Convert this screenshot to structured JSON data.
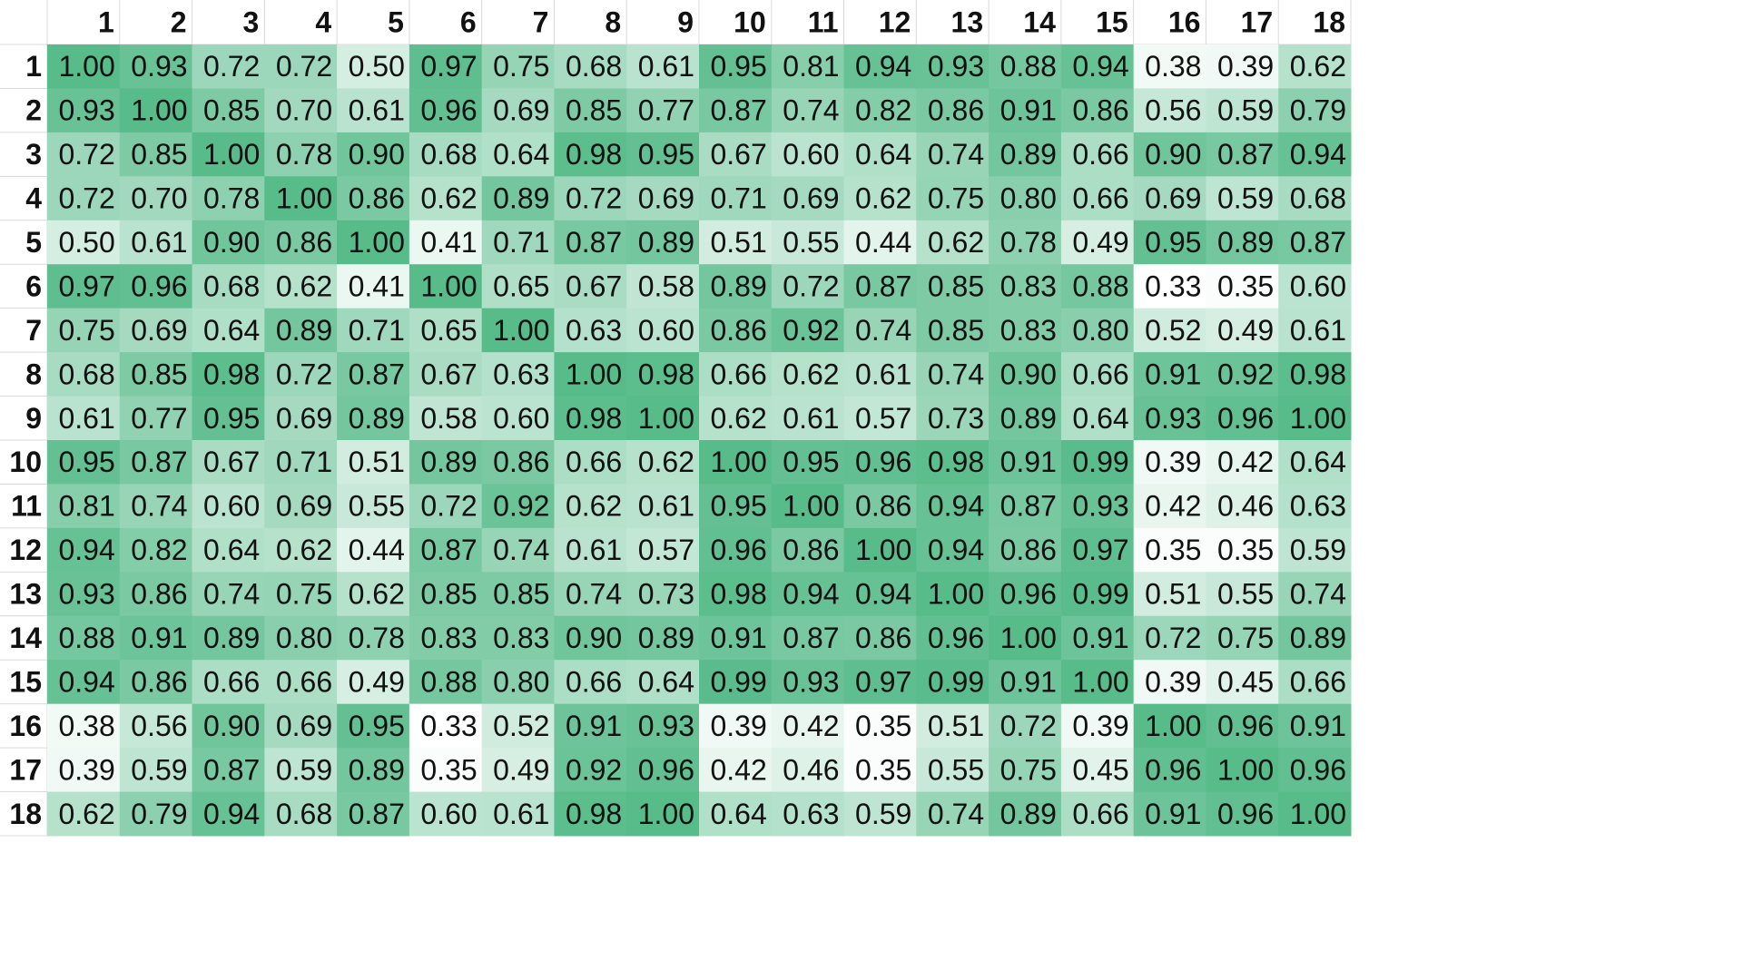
{
  "chart_data": {
    "type": "heatmap",
    "x_labels": [
      "1",
      "2",
      "3",
      "4",
      "5",
      "6",
      "7",
      "8",
      "9",
      "10",
      "11",
      "12",
      "13",
      "14",
      "15",
      "16",
      "17",
      "18"
    ],
    "y_labels": [
      "1",
      "2",
      "3",
      "4",
      "5",
      "6",
      "7",
      "8",
      "9",
      "10",
      "11",
      "12",
      "13",
      "14",
      "15",
      "16",
      "17",
      "18"
    ],
    "values": [
      [
        1.0,
        0.93,
        0.72,
        0.72,
        0.5,
        0.97,
        0.75,
        0.68,
        0.61,
        0.95,
        0.81,
        0.94,
        0.93,
        0.88,
        0.94,
        0.38,
        0.39,
        0.62
      ],
      [
        0.93,
        1.0,
        0.85,
        0.7,
        0.61,
        0.96,
        0.69,
        0.85,
        0.77,
        0.87,
        0.74,
        0.82,
        0.86,
        0.91,
        0.86,
        0.56,
        0.59,
        0.79
      ],
      [
        0.72,
        0.85,
        1.0,
        0.78,
        0.9,
        0.68,
        0.64,
        0.98,
        0.95,
        0.67,
        0.6,
        0.64,
        0.74,
        0.89,
        0.66,
        0.9,
        0.87,
        0.94
      ],
      [
        0.72,
        0.7,
        0.78,
        1.0,
        0.86,
        0.62,
        0.89,
        0.72,
        0.69,
        0.71,
        0.69,
        0.62,
        0.75,
        0.8,
        0.66,
        0.69,
        0.59,
        0.68
      ],
      [
        0.5,
        0.61,
        0.9,
        0.86,
        1.0,
        0.41,
        0.71,
        0.87,
        0.89,
        0.51,
        0.55,
        0.44,
        0.62,
        0.78,
        0.49,
        0.95,
        0.89,
        0.87
      ],
      [
        0.97,
        0.96,
        0.68,
        0.62,
        0.41,
        1.0,
        0.65,
        0.67,
        0.58,
        0.89,
        0.72,
        0.87,
        0.85,
        0.83,
        0.88,
        0.33,
        0.35,
        0.6
      ],
      [
        0.75,
        0.69,
        0.64,
        0.89,
        0.71,
        0.65,
        1.0,
        0.63,
        0.6,
        0.86,
        0.92,
        0.74,
        0.85,
        0.83,
        0.8,
        0.52,
        0.49,
        0.61
      ],
      [
        0.68,
        0.85,
        0.98,
        0.72,
        0.87,
        0.67,
        0.63,
        1.0,
        0.98,
        0.66,
        0.62,
        0.61,
        0.74,
        0.9,
        0.66,
        0.91,
        0.92,
        0.98
      ],
      [
        0.61,
        0.77,
        0.95,
        0.69,
        0.89,
        0.58,
        0.6,
        0.98,
        1.0,
        0.62,
        0.61,
        0.57,
        0.73,
        0.89,
        0.64,
        0.93,
        0.96,
        1.0
      ],
      [
        0.95,
        0.87,
        0.67,
        0.71,
        0.51,
        0.89,
        0.86,
        0.66,
        0.62,
        1.0,
        0.95,
        0.96,
        0.98,
        0.91,
        0.99,
        0.39,
        0.42,
        0.64
      ],
      [
        0.81,
        0.74,
        0.6,
        0.69,
        0.55,
        0.72,
        0.92,
        0.62,
        0.61,
        0.95,
        1.0,
        0.86,
        0.94,
        0.87,
        0.93,
        0.42,
        0.46,
        0.63
      ],
      [
        0.94,
        0.82,
        0.64,
        0.62,
        0.44,
        0.87,
        0.74,
        0.61,
        0.57,
        0.96,
        0.86,
        1.0,
        0.94,
        0.86,
        0.97,
        0.35,
        0.35,
        0.59
      ],
      [
        0.93,
        0.86,
        0.74,
        0.75,
        0.62,
        0.85,
        0.85,
        0.74,
        0.73,
        0.98,
        0.94,
        0.94,
        1.0,
        0.96,
        0.99,
        0.51,
        0.55,
        0.74
      ],
      [
        0.88,
        0.91,
        0.89,
        0.8,
        0.78,
        0.83,
        0.83,
        0.9,
        0.89,
        0.91,
        0.87,
        0.86,
        0.96,
        1.0,
        0.91,
        0.72,
        0.75,
        0.89
      ],
      [
        0.94,
        0.86,
        0.66,
        0.66,
        0.49,
        0.88,
        0.8,
        0.66,
        0.64,
        0.99,
        0.93,
        0.97,
        0.99,
        0.91,
        1.0,
        0.39,
        0.45,
        0.66
      ],
      [
        0.38,
        0.56,
        0.9,
        0.69,
        0.95,
        0.33,
        0.52,
        0.91,
        0.93,
        0.39,
        0.42,
        0.35,
        0.51,
        0.72,
        0.39,
        1.0,
        0.96,
        0.91
      ],
      [
        0.39,
        0.59,
        0.87,
        0.59,
        0.89,
        0.35,
        0.49,
        0.92,
        0.96,
        0.42,
        0.46,
        0.35,
        0.55,
        0.75,
        0.45,
        0.96,
        1.0,
        0.96
      ],
      [
        0.62,
        0.79,
        0.94,
        0.68,
        0.87,
        0.6,
        0.61,
        0.98,
        1.0,
        0.64,
        0.63,
        0.59,
        0.74,
        0.89,
        0.66,
        0.91,
        0.96,
        1.0
      ]
    ],
    "value_range": [
      0.33,
      1.0
    ],
    "colors": {
      "low": "#ffffff",
      "high": "#57bb8a",
      "gridline": "#d9d9d9",
      "text": "#111111"
    },
    "legend": "none",
    "grid": true
  }
}
